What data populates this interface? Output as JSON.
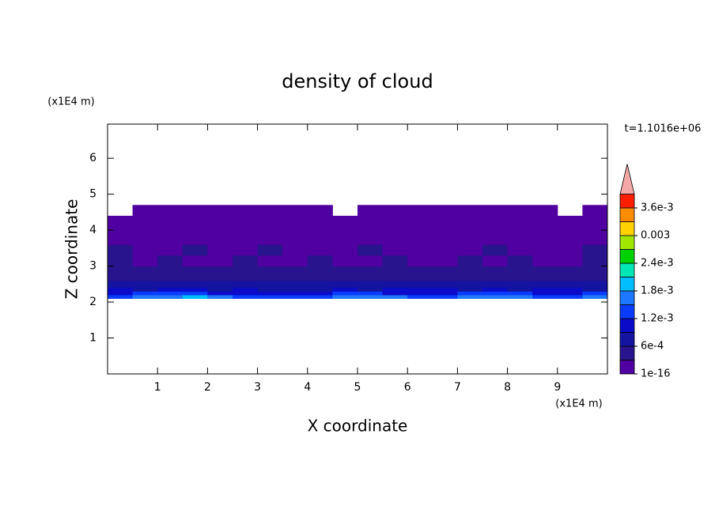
{
  "chart_data": {
    "type": "contour",
    "title": "density of cloud",
    "xlabel": "X coordinate",
    "ylabel": "Z coordinate",
    "xunit": "(x1E4 m)",
    "yunit": "(x1E4 m)",
    "annotation": "t=1.1016e+06",
    "xlim": [
      0,
      10
    ],
    "ylim": [
      0,
      6.95
    ],
    "xticks": [
      1,
      2,
      3,
      4,
      5,
      6,
      7,
      8,
      9
    ],
    "yticks": [
      1,
      2,
      3,
      4,
      5,
      6
    ],
    "xbins": [
      0,
      0.5,
      1,
      1.5,
      2,
      2.5,
      3,
      3.5,
      4,
      4.5,
      5,
      5.5,
      6,
      6.5,
      7,
      7.5,
      8,
      8.5,
      9,
      9.5,
      10
    ],
    "zbins": [
      2.1,
      2.2,
      2.3,
      2.4,
      2.6,
      2.8,
      3.0,
      3.3,
      3.6,
      4.0,
      4.4,
      4.7
    ],
    "values": [
      [
        0.0014,
        0.0016,
        0.0015,
        0.0018,
        0.0017,
        0.0013,
        0.0012,
        0.0014,
        0.0013,
        0.0016,
        0.0017,
        0.0015,
        0.0014,
        0.0013,
        0.0015,
        0.0016,
        0.0017,
        0.0014,
        0.0013,
        0.0015
      ],
      [
        0.0011,
        0.0012,
        0.0013,
        0.0012,
        0.0011,
        0.001,
        0.0009,
        0.0011,
        0.001,
        0.0012,
        0.0013,
        0.0011,
        0.001,
        0.0011,
        0.0012,
        0.0013,
        0.0012,
        0.0011,
        0.001,
        0.0012
      ],
      [
        0.0009,
        0.0008,
        0.001,
        0.0009,
        0.0008,
        0.0009,
        0.0008,
        0.0007,
        0.0008,
        0.0009,
        0.0008,
        0.0009,
        0.001,
        0.0009,
        0.0008,
        0.0009,
        0.0008,
        0.0009,
        0.001,
        0.0008
      ],
      [
        0.0007,
        0.0006,
        0.0007,
        0.0008,
        0.0007,
        0.0006,
        0.0007,
        0.0008,
        0.0007,
        0.0006,
        0.0007,
        0.0006,
        0.0007,
        0.0008,
        0.0007,
        0.0006,
        0.0007,
        0.0007,
        0.0006,
        0.0007
      ],
      [
        0.0005,
        0.0004,
        0.0005,
        0.0004,
        0.0005,
        0.0005,
        0.0004,
        0.0005,
        0.0004,
        0.0005,
        0.0004,
        0.0005,
        0.0005,
        0.0004,
        0.0005,
        0.0004,
        0.0005,
        0.0004,
        0.0005,
        0.0005
      ],
      [
        0.0004,
        0.0003,
        0.0004,
        0.0003,
        0.0003,
        0.0004,
        0.0003,
        0.0004,
        0.0003,
        0.0003,
        0.0004,
        0.0003,
        0.0004,
        0.0003,
        0.0004,
        0.0003,
        0.0003,
        0.0004,
        0.0003,
        0.0004
      ],
      [
        0.0003,
        0.0002,
        0.0003,
        0.0002,
        0.0002,
        0.0003,
        0.0002,
        0.0002,
        0.0003,
        0.0002,
        0.0002,
        0.0003,
        0.0002,
        0.0002,
        0.0003,
        0.0002,
        0.0003,
        0.0002,
        0.0002,
        0.0003
      ],
      [
        0.0003,
        0.0002,
        0.0002,
        0.0003,
        0.0002,
        0.0002,
        0.0003,
        0.0002,
        0.0002,
        0.0002,
        0.0003,
        0.0002,
        0.0002,
        0.0002,
        0.0002,
        0.0003,
        0.0002,
        0.0002,
        0.0002,
        0.0003
      ],
      [
        0.0001,
        0.0001,
        0.0001,
        0.0001,
        0.0001,
        0.0001,
        0.0001,
        0.0001,
        0.0001,
        0.0001,
        0.0001,
        0.0001,
        0.0001,
        0.0001,
        0.0001,
        0.0001,
        0.0001,
        0.0001,
        0.0001,
        0.0001
      ],
      [
        5e-05,
        5e-05,
        5e-05,
        5e-05,
        5e-05,
        5e-05,
        5e-05,
        5e-05,
        5e-05,
        5e-05,
        5e-05,
        5e-05,
        5e-05,
        5e-05,
        5e-05,
        5e-05,
        5e-05,
        5e-05,
        5e-05,
        5e-05
      ],
      [
        null,
        1e-05,
        1e-05,
        1e-05,
        1e-05,
        2e-05,
        2e-05,
        2e-05,
        2e-05,
        null,
        2e-05,
        2e-05,
        2e-05,
        2e-05,
        2e-05,
        2e-05,
        2e-05,
        2e-05,
        null,
        2e-05
      ]
    ],
    "levels": [
      1e-16,
      0.0003,
      0.0006,
      0.0009,
      0.0012,
      0.0015,
      0.0018,
      0.0021,
      0.0024,
      0.0027,
      0.003,
      0.0033,
      0.0036,
      0.0039
    ],
    "colors": [
      "#5000a0",
      "#28148c",
      "#1414a0",
      "#0a0ac8",
      "#0a3cff",
      "#1e78ff",
      "#00beff",
      "#00e6b4",
      "#00d200",
      "#a0e600",
      "#ffd200",
      "#ff8c00",
      "#ff1e00"
    ],
    "extend_color": "#f4a8a8",
    "colorbar_ticks": [
      1e-16,
      {
        "value": 0.0006,
        "label": "6e-4"
      },
      {
        "value": 0.0012,
        "label": "1.2e-3"
      },
      {
        "value": 0.0018,
        "label": "1.8e-3"
      },
      {
        "value": 0.0024,
        "label": "2.4e-3"
      },
      0.003,
      {
        "value": 0.0036,
        "label": "3.6e-3"
      }
    ]
  }
}
